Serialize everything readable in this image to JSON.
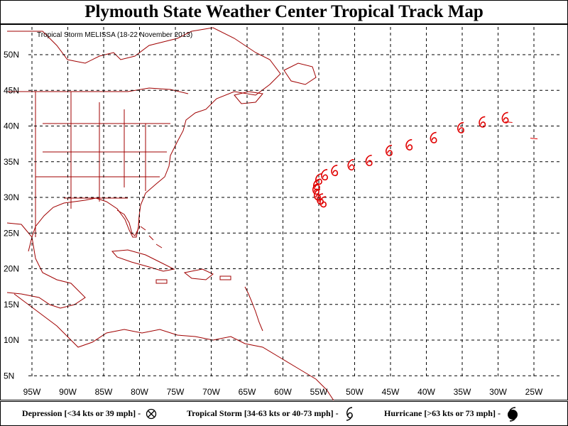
{
  "title": "Plymouth State Weather Center Tropical Track Map",
  "storm_label": "Tropical Storm MELISSA (18-22 November 2013)",
  "colors": {
    "track": "#e00000",
    "land": "#a00000",
    "grid": "#000000"
  },
  "axes": {
    "lon_ticks": [
      "95W",
      "90W",
      "85W",
      "80W",
      "75W",
      "70W",
      "65W",
      "60W",
      "55W",
      "50W",
      "45W",
      "40W",
      "35W",
      "30W",
      "25W"
    ],
    "lat_ticks": [
      "50N",
      "45N",
      "40N",
      "35N",
      "30N",
      "25N",
      "20N",
      "15N",
      "10N",
      "5N"
    ]
  },
  "legend": {
    "depression": "Depression [<34 kts or 39 mph] -",
    "tropical_storm": "Tropical Storm [34-63 kts or 40-73 mph] -",
    "hurricane": "Hurricane [>63 kts or 73 mph] -"
  },
  "track": [
    {
      "lat": 29.2,
      "lon": -54.4,
      "category": "tropical_storm"
    },
    {
      "lat": 29.6,
      "lon": -54.8,
      "category": "tropical_storm"
    },
    {
      "lat": 30.2,
      "lon": -55.2,
      "category": "tropical_storm"
    },
    {
      "lat": 31.0,
      "lon": -55.4,
      "category": "tropical_storm"
    },
    {
      "lat": 31.6,
      "lon": -55.3,
      "category": "tropical_storm"
    },
    {
      "lat": 32.4,
      "lon": -55.0,
      "category": "tropical_storm"
    },
    {
      "lat": 33.0,
      "lon": -54.2,
      "category": "tropical_storm"
    },
    {
      "lat": 33.6,
      "lon": -52.8,
      "category": "tropical_storm"
    },
    {
      "lat": 34.4,
      "lon": -50.5,
      "category": "tropical_storm"
    },
    {
      "lat": 35.0,
      "lon": -48.0,
      "category": "tropical_storm"
    },
    {
      "lat": 36.4,
      "lon": -45.2,
      "category": "tropical_storm"
    },
    {
      "lat": 37.2,
      "lon": -42.4,
      "category": "tropical_storm"
    },
    {
      "lat": 38.2,
      "lon": -39.0,
      "category": "tropical_storm"
    },
    {
      "lat": 39.6,
      "lon": -35.2,
      "category": "tropical_storm"
    },
    {
      "lat": 40.4,
      "lon": -32.2,
      "category": "tropical_storm"
    },
    {
      "lat": 41.0,
      "lon": -29.0,
      "category": "tropical_storm"
    }
  ]
}
